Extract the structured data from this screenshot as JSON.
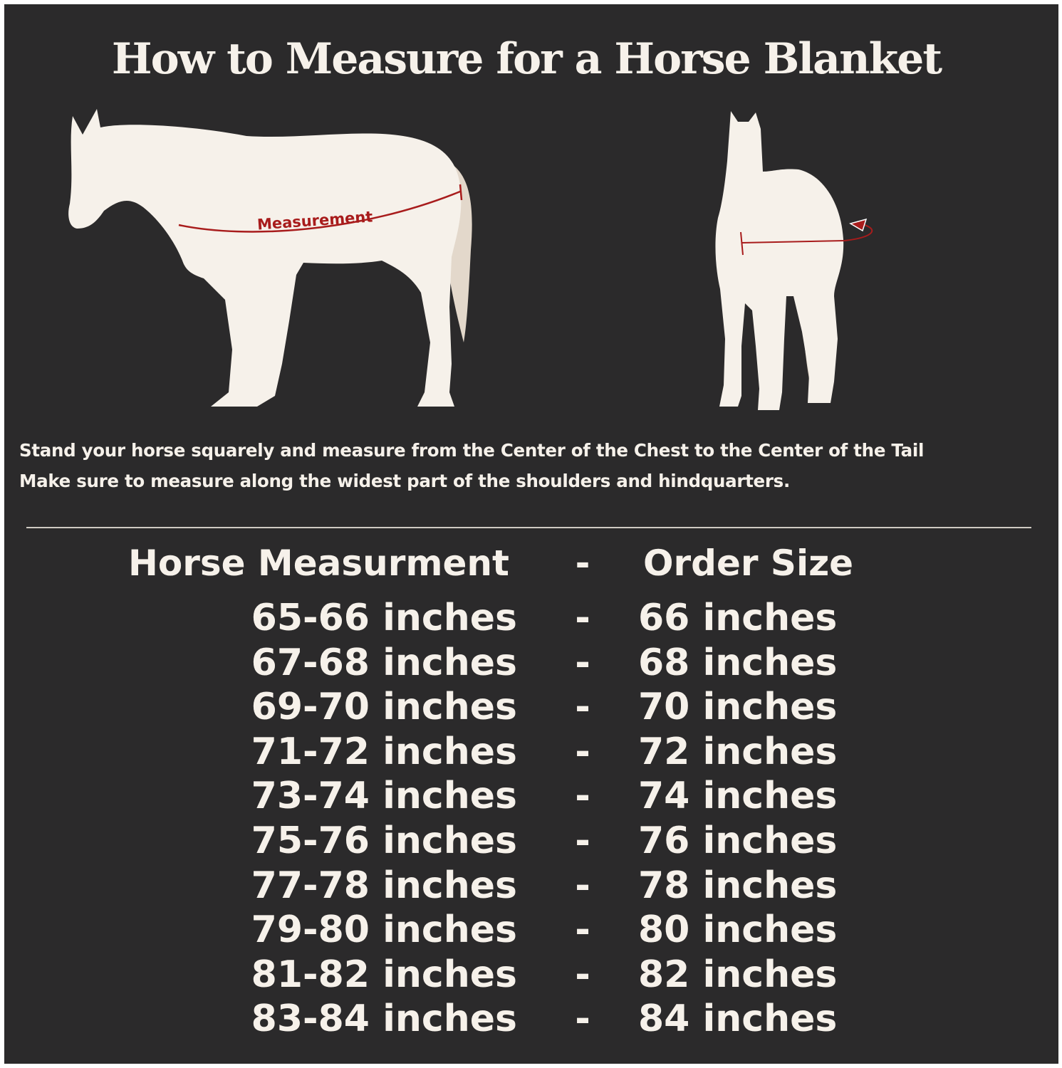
{
  "title": "How to Measure for a Horse Blanket",
  "diagram": {
    "side_label": "Measurement",
    "horse_color": "#f6f1ea",
    "tail_color": "#e3d8cb",
    "measure_color": "#a81c1c"
  },
  "instructions": [
    "Stand your horse squarely and measure from the Center of the Chest to the Center of the Tail",
    "Make sure to measure along the widest part of the shoulders and hindquarters."
  ],
  "table": {
    "header": {
      "left": "Horse Measurment",
      "sep": "-",
      "right": "Order Size"
    },
    "rows": [
      {
        "measurement": "65-66 inches",
        "sep": "-",
        "size": "66 inches"
      },
      {
        "measurement": "67-68 inches",
        "sep": "-",
        "size": "68 inches"
      },
      {
        "measurement": "69-70 inches",
        "sep": "-",
        "size": "70 inches"
      },
      {
        "measurement": "71-72 inches",
        "sep": "-",
        "size": "72 inches"
      },
      {
        "measurement": "73-74 inches",
        "sep": "-",
        "size": "74 inches"
      },
      {
        "measurement": "75-76 inches",
        "sep": "-",
        "size": "76 inches"
      },
      {
        "measurement": "77-78 inches",
        "sep": "-",
        "size": "78 inches"
      },
      {
        "measurement": "79-80 inches",
        "sep": "-",
        "size": "80 inches"
      },
      {
        "measurement": "81-82 inches",
        "sep": "-",
        "size": "82 inches"
      },
      {
        "measurement": "83-84 inches",
        "sep": "-",
        "size": "84 inches"
      }
    ]
  }
}
